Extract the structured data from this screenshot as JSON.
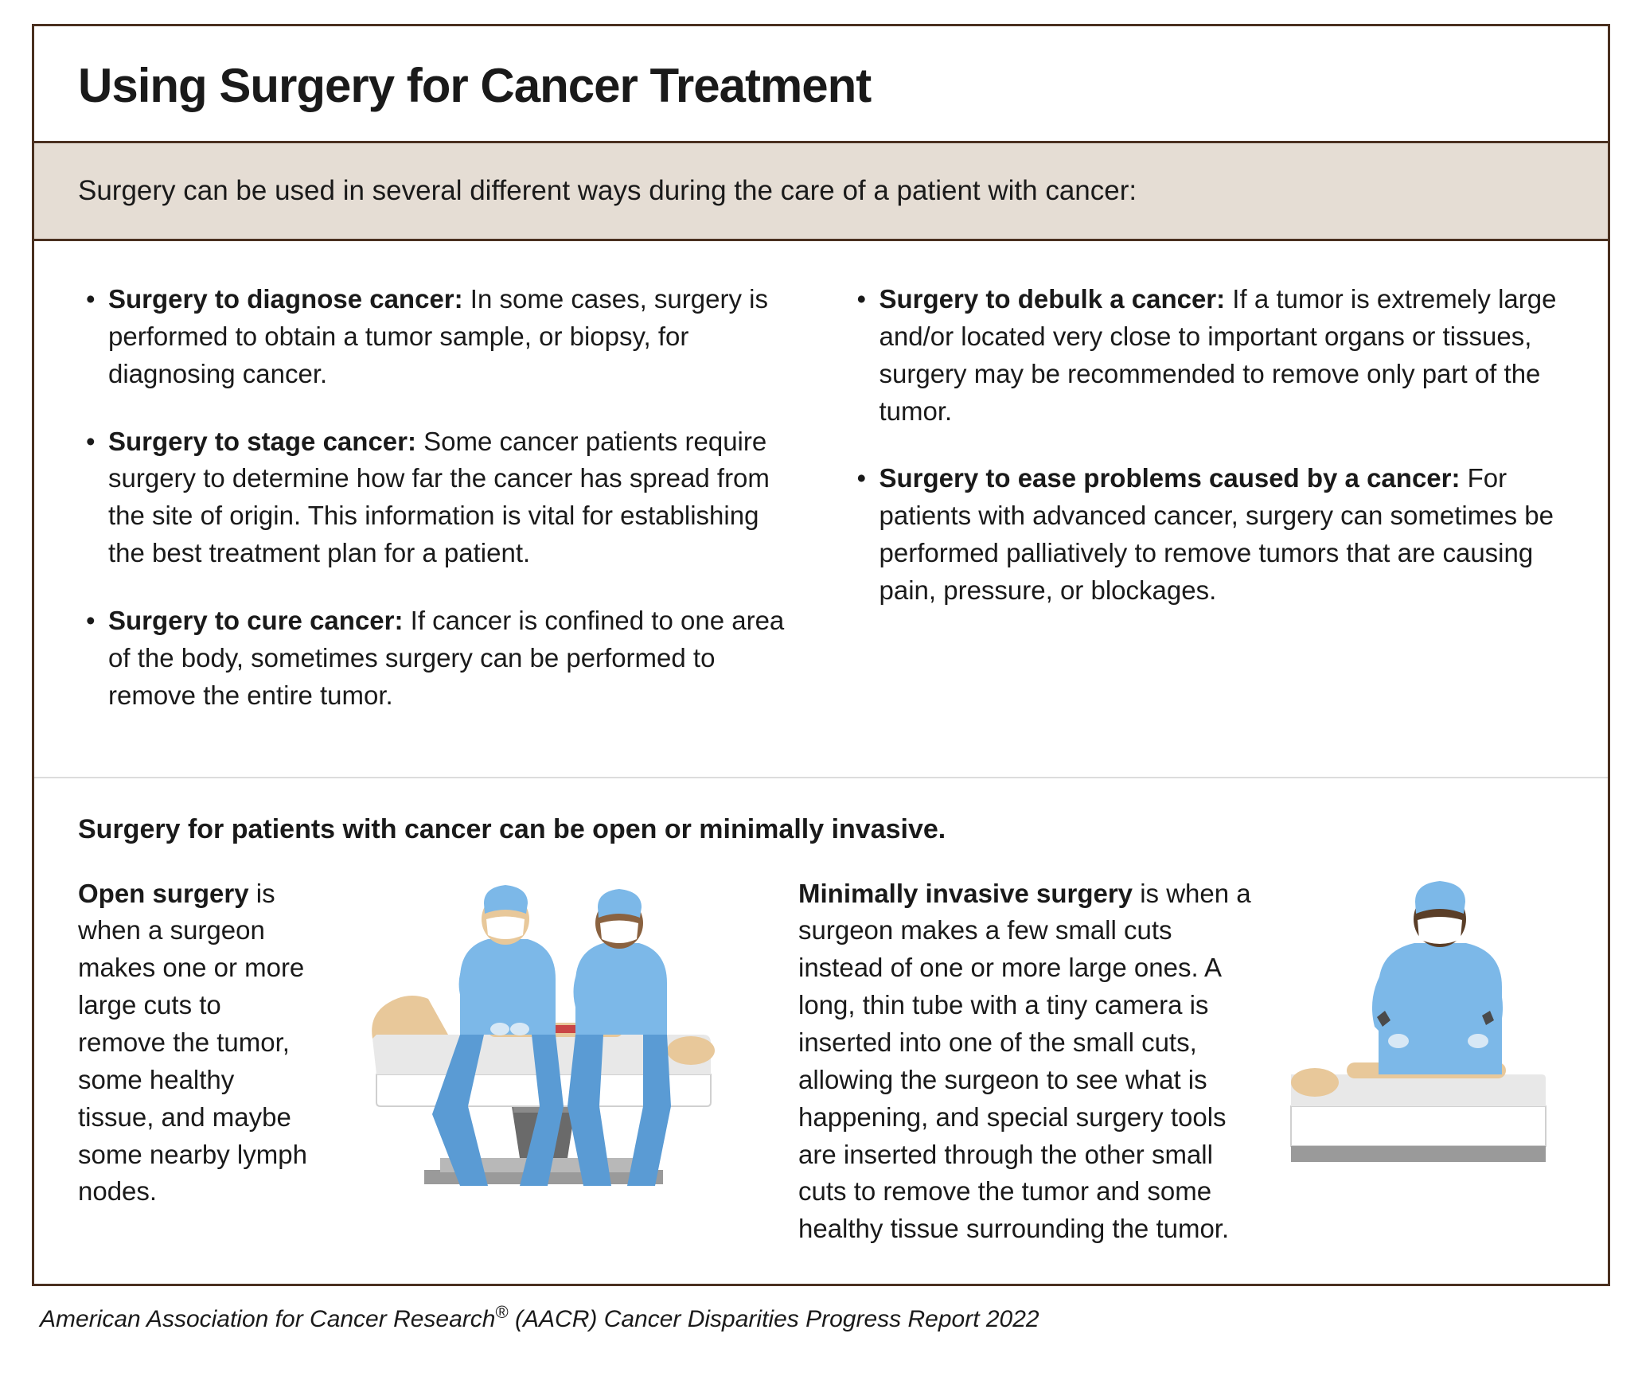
{
  "title": "Using Surgery for Cancer Treatment",
  "intro": "Surgery can be used in several different ways during the care of a patient with cancer:",
  "bullets_left": [
    {
      "title": "Surgery to diagnose cancer:",
      "body": " In some cases, surgery is performed to obtain a tumor sample, or biopsy, for diagnosing cancer."
    },
    {
      "title": "Surgery to stage cancer:",
      "body": " Some cancer patients require surgery to determine how far the cancer has spread from the site of origin. This information is vital for establishing the best treatment plan for a patient."
    },
    {
      "title": "Surgery to cure cancer:",
      "body": " If cancer is confined to one area of the body, sometimes surgery can be performed to remove the entire tumor."
    }
  ],
  "bullets_right": [
    {
      "title": "Surgery to debulk a cancer:",
      "body": " If a tumor is extremely large and/or located very close to important organs or tissues, surgery may be recommended to remove only part of the tumor."
    },
    {
      "title": "Surgery to ease problems caused by a cancer:",
      "body": " For patients with advanced cancer, surgery can sometimes be performed palliatively to remove tumors that are causing pain, pressure, or blockages."
    }
  ],
  "types_heading": "Surgery for patients with cancer can be open or minimally invasive.",
  "open": {
    "title": "Open surgery",
    "body": " is when a surgeon makes one or more large cuts to remove the tumor, some healthy tissue, and maybe some nearby lymph nodes."
  },
  "minimal": {
    "title": "Minimally invasive surgery",
    "body": " is when a surgeon makes a few small cuts instead of one or more large ones. A long, thin tube with a tiny camera is inserted into one of the small cuts, allowing the surgeon to see what is happening, and special surgery tools are inserted through the other small cuts to remove the tumor and some healthy tissue surrounding the tumor."
  },
  "footer": "American Association for Cancer Research® (AACR) Cancer Disparities Progress Report 2022",
  "colors": {
    "border": "#4a3020",
    "intro_bg": "#e5ddd4",
    "text": "#1a1a1a",
    "scrub_blue": "#7cb8e8",
    "scrub_shadow": "#5a9bd4",
    "skin_light": "#e8c89a",
    "skin_dark": "#8a6240",
    "mask": "#ffffff",
    "table_white": "#ffffff",
    "table_gray": "#9a9a9a",
    "table_dark": "#6a6a6a",
    "incision": "#c94545",
    "tool": "#4a4a4a"
  }
}
